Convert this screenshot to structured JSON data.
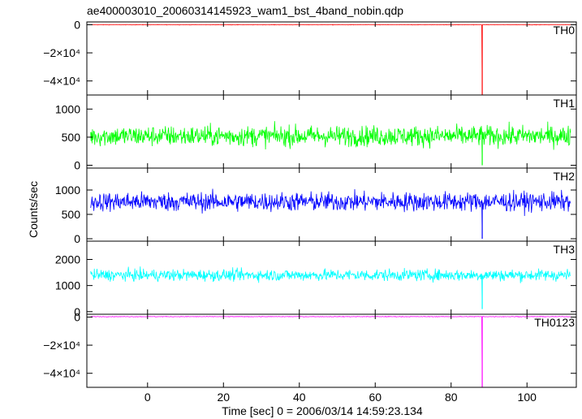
{
  "chart_data": {
    "type": "line",
    "title": "ae400003010_20060314145923_wam1_bst_4band_nobin.qdp",
    "xlabel": "Time [sec] 0 = 2006/03/14 14:59:23.134",
    "ylabel": "Counts/sec",
    "xlim": [
      -16,
      113
    ],
    "x_ticks": [
      0,
      20,
      40,
      60,
      80,
      100
    ],
    "x_tick_labels": [
      "0",
      "20",
      "40",
      "60",
      "80",
      "100"
    ],
    "x_start": -15,
    "x_end": 111.5,
    "spike_x": 88.2,
    "panels": [
      {
        "name": "TH0",
        "color": "#ff0000",
        "ylim": [
          -50000,
          2000
        ],
        "y_ticks": [
          0,
          -20000,
          -40000
        ],
        "y_tick_labels": [
          "0",
          "−2×10⁴",
          "−4×10⁴"
        ],
        "baseline": 0,
        "noise": 250,
        "spike_value": -50000
      },
      {
        "name": "TH1",
        "color": "#00ff00",
        "ylim": [
          -50,
          1250
        ],
        "y_ticks": [
          0,
          500,
          1000
        ],
        "y_tick_labels": [
          "0",
          "500",
          "1000"
        ],
        "baseline": 520,
        "noise": 260,
        "spike_value": 0
      },
      {
        "name": "TH2",
        "color": "#0000ff",
        "ylim": [
          -50,
          1450
        ],
        "y_ticks": [
          0,
          500,
          1000
        ],
        "y_tick_labels": [
          "0",
          "500",
          "1000"
        ],
        "baseline": 760,
        "noise": 280,
        "spike_value": 0
      },
      {
        "name": "TH3",
        "color": "#00ffff",
        "ylim": [
          -100,
          2700
        ],
        "y_ticks": [
          0,
          1000,
          2000
        ],
        "y_tick_labels": [
          "0",
          "1000",
          "2000"
        ],
        "baseline": 1400,
        "noise": 320,
        "spike_value": 100
      },
      {
        "name": "TH0123",
        "color": "#ff00ff",
        "ylim": [
          -50000,
          2000
        ],
        "y_ticks": [
          0,
          -20000,
          -40000
        ],
        "y_tick_labels": [
          "0",
          "−2×10⁴",
          "−4×10⁴"
        ],
        "baseline": 300,
        "noise": 300,
        "spike_value": -50000
      }
    ]
  }
}
